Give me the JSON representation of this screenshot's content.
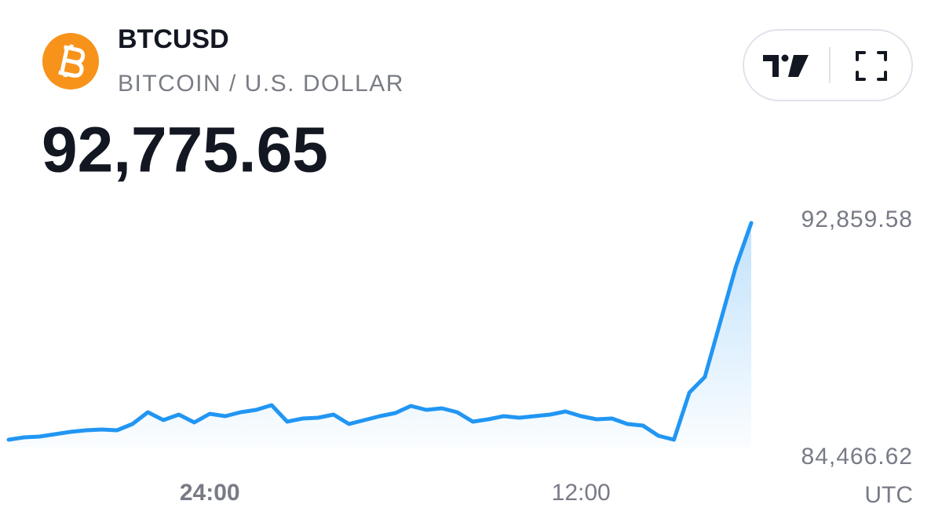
{
  "chart_data": {
    "type": "line",
    "title": "BTCUSD",
    "subtitle": "BITCOIN / U.S. DOLLAR",
    "current_price": "92,775.65",
    "xlabel": "UTC",
    "color": "#2196f3",
    "categories": [
      null,
      null,
      null,
      null,
      null,
      null,
      null,
      null,
      null,
      null,
      null,
      null,
      null,
      "24:00",
      null,
      null,
      null,
      null,
      null,
      null,
      null,
      null,
      null,
      null,
      null,
      null,
      null,
      null,
      null,
      null,
      null,
      null,
      null,
      null,
      null,
      null,
      null,
      "12:00",
      null,
      null,
      null,
      null,
      null,
      null,
      null,
      null,
      null,
      null,
      null
    ],
    "values": [
      85105.8,
      85189.2,
      85216.9,
      85300.3,
      85383.7,
      85439.3,
      85467.1,
      85439.3,
      85661.6,
      86078.4,
      85800.5,
      85995.1,
      85717.2,
      86022.8,
      85939.5,
      86078.4,
      86161.8,
      86328.5,
      85744.9,
      85856.1,
      85883.9,
      85995.1,
      85661.6,
      85800.5,
      85939.5,
      86050.6,
      86300.7,
      86161.8,
      86217.4,
      86078.4,
      85744.9,
      85828.3,
      85939.5,
      85883.9,
      85939.5,
      85995.1,
      86106.2,
      85939.5,
      85828.3,
      85856.1,
      85661.6,
      85606.0,
      85244.7,
      85105.8,
      86773.2,
      87329.0,
      89274.3,
      91219.6,
      92775.65
    ],
    "ylim": [
      84466.62,
      92859.58
    ],
    "yticks": [
      {
        "value": 92859.58,
        "label": "92,859.58"
      },
      {
        "value": 84466.62,
        "label": "84,466.62"
      }
    ]
  }
}
